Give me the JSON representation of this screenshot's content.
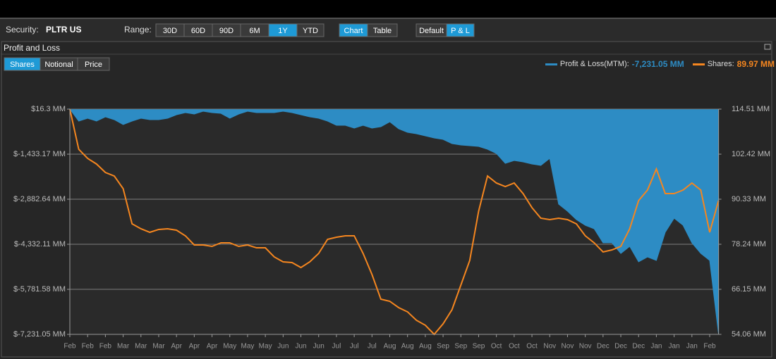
{
  "toolbar": {
    "security_label": "Security:",
    "security": "PLTR US",
    "range_label": "Range:",
    "range": {
      "options": [
        "30D",
        "60D",
        "90D",
        "6M",
        "1Y",
        "YTD"
      ],
      "active": 4
    },
    "view": {
      "options": [
        "Chart",
        "Table"
      ],
      "active": 0
    },
    "mode": {
      "options": [
        "Default",
        "P & L"
      ],
      "active": 1
    }
  },
  "panel": {
    "title": "Profit and Loss",
    "measure": {
      "options": [
        "Shares",
        "Notional",
        "Price"
      ],
      "active": 0
    }
  },
  "chart_data": {
    "type": "area-line",
    "categories": [
      "Feb",
      null,
      "Feb",
      null,
      "Feb",
      null,
      "Mar",
      null,
      "Mar",
      null,
      "Mar",
      null,
      "Apr",
      null,
      "Apr",
      null,
      "Apr",
      null,
      "May",
      null,
      "May",
      null,
      "May",
      null,
      "Jun",
      null,
      "Jun",
      null,
      "Jun",
      null,
      "Jul",
      null,
      "Jul",
      null,
      "Jul",
      null,
      "Aug",
      null,
      "Aug",
      null,
      "Aug",
      null,
      "Sep",
      null,
      "Sep",
      null,
      "Sep",
      null,
      "Oct",
      null,
      "Oct",
      null,
      "Oct",
      null,
      "Nov",
      null,
      "Nov",
      null,
      "Nov",
      null,
      "Dec",
      null,
      "Dec",
      null,
      "Dec",
      null,
      "Jan",
      null,
      "Jan",
      null,
      "Jan",
      null,
      "Feb",
      null
    ],
    "series": [
      {
        "name": "Profit & Loss(MTM):",
        "current_label": "-7,231.05 MM",
        "color": "#2d8cc4",
        "axis": "y",
        "values": [
          16.3,
          -368.7,
          -278.1,
          -368.7,
          -232.8,
          -323.4,
          -481.9,
          -368.7,
          -278.1,
          -323.4,
          -323.4,
          -278.1,
          -164.9,
          -96.9,
          -142.2,
          -51.6,
          -96.9,
          -119.6,
          -278.1,
          -142.2,
          -51.6,
          -96.9,
          -96.9,
          -96.9,
          -51.6,
          -96.9,
          -164.9,
          -232.8,
          -278.1,
          -368.7,
          -504.6,
          -504.6,
          -595.2,
          -504.6,
          -595.2,
          -549.9,
          -391.4,
          -617.8,
          -731.1,
          -776.4,
          -844.3,
          -912.2,
          -957.5,
          -1093.4,
          -1138.7,
          -1161.4,
          -1184.0,
          -1274.6,
          -1410.5,
          -1727.6,
          -1637.0,
          -1682.3,
          -1750.2,
          -1795.5,
          -1569.1,
          -3041.2,
          -3267.7,
          -3539.4,
          -3720.6,
          -3833.9,
          -4286.8,
          -4286.8,
          -4626.6,
          -4400.1,
          -4898.4,
          -4739.8,
          -4853.1,
          -3947.1,
          -3494.2,
          -3720.6,
          -4286.8,
          -4626.6,
          -4853.1,
          -7231.05
        ]
      },
      {
        "name": "Shares:",
        "current_label": "89.97 MM",
        "color": "#f5861f",
        "axis": "y2",
        "values": [
          114.51,
          103.74,
          101.29,
          99.78,
          97.51,
          96.56,
          93.16,
          83.72,
          82.4,
          81.45,
          82.21,
          82.4,
          82.02,
          80.51,
          78.05,
          78.05,
          77.67,
          78.62,
          78.62,
          77.67,
          78.05,
          77.29,
          77.29,
          74.84,
          73.52,
          73.33,
          72.0,
          73.52,
          75.78,
          79.56,
          80.13,
          80.51,
          80.51,
          75.78,
          70.12,
          63.5,
          62.94,
          61.24,
          60.1,
          57.84,
          56.51,
          54.06,
          56.89,
          60.67,
          67.28,
          73.9,
          87.12,
          96.56,
          94.68,
          93.73,
          94.68,
          91.84,
          88.07,
          85.23,
          84.85,
          85.23,
          84.85,
          83.72,
          80.51,
          78.62,
          76.17,
          76.73,
          77.67,
          82.4,
          89.95,
          92.78,
          98.45,
          91.84,
          91.84,
          92.78,
          94.68,
          92.78,
          81.45,
          89.97
        ]
      }
    ],
    "ylim": [
      -7231.05,
      16.3
    ],
    "yticks": [
      {
        "value": 16.3,
        "label": "$16.3 MM"
      },
      {
        "value": -1433.17,
        "label": "$-1,433.17 MM"
      },
      {
        "value": -2882.64,
        "label": "$-2,882.64 MM"
      },
      {
        "value": -4332.11,
        "label": "$-4,332.11 MM"
      },
      {
        "value": -5781.58,
        "label": "$-5,781.58 MM"
      },
      {
        "value": -7231.05,
        "label": "$-7,231.05 MM"
      }
    ],
    "y2lim": [
      54.06,
      114.51
    ],
    "y2ticks": [
      {
        "value": 114.51,
        "label": "114.51 MM"
      },
      {
        "value": 102.42,
        "label": "102.42 MM"
      },
      {
        "value": 90.33,
        "label": "90.33 MM"
      },
      {
        "value": 78.24,
        "label": "78.24 MM"
      },
      {
        "value": 66.15,
        "label": "66.15 MM"
      },
      {
        "value": 54.06,
        "label": "54.06 MM"
      }
    ],
    "grid": true
  }
}
